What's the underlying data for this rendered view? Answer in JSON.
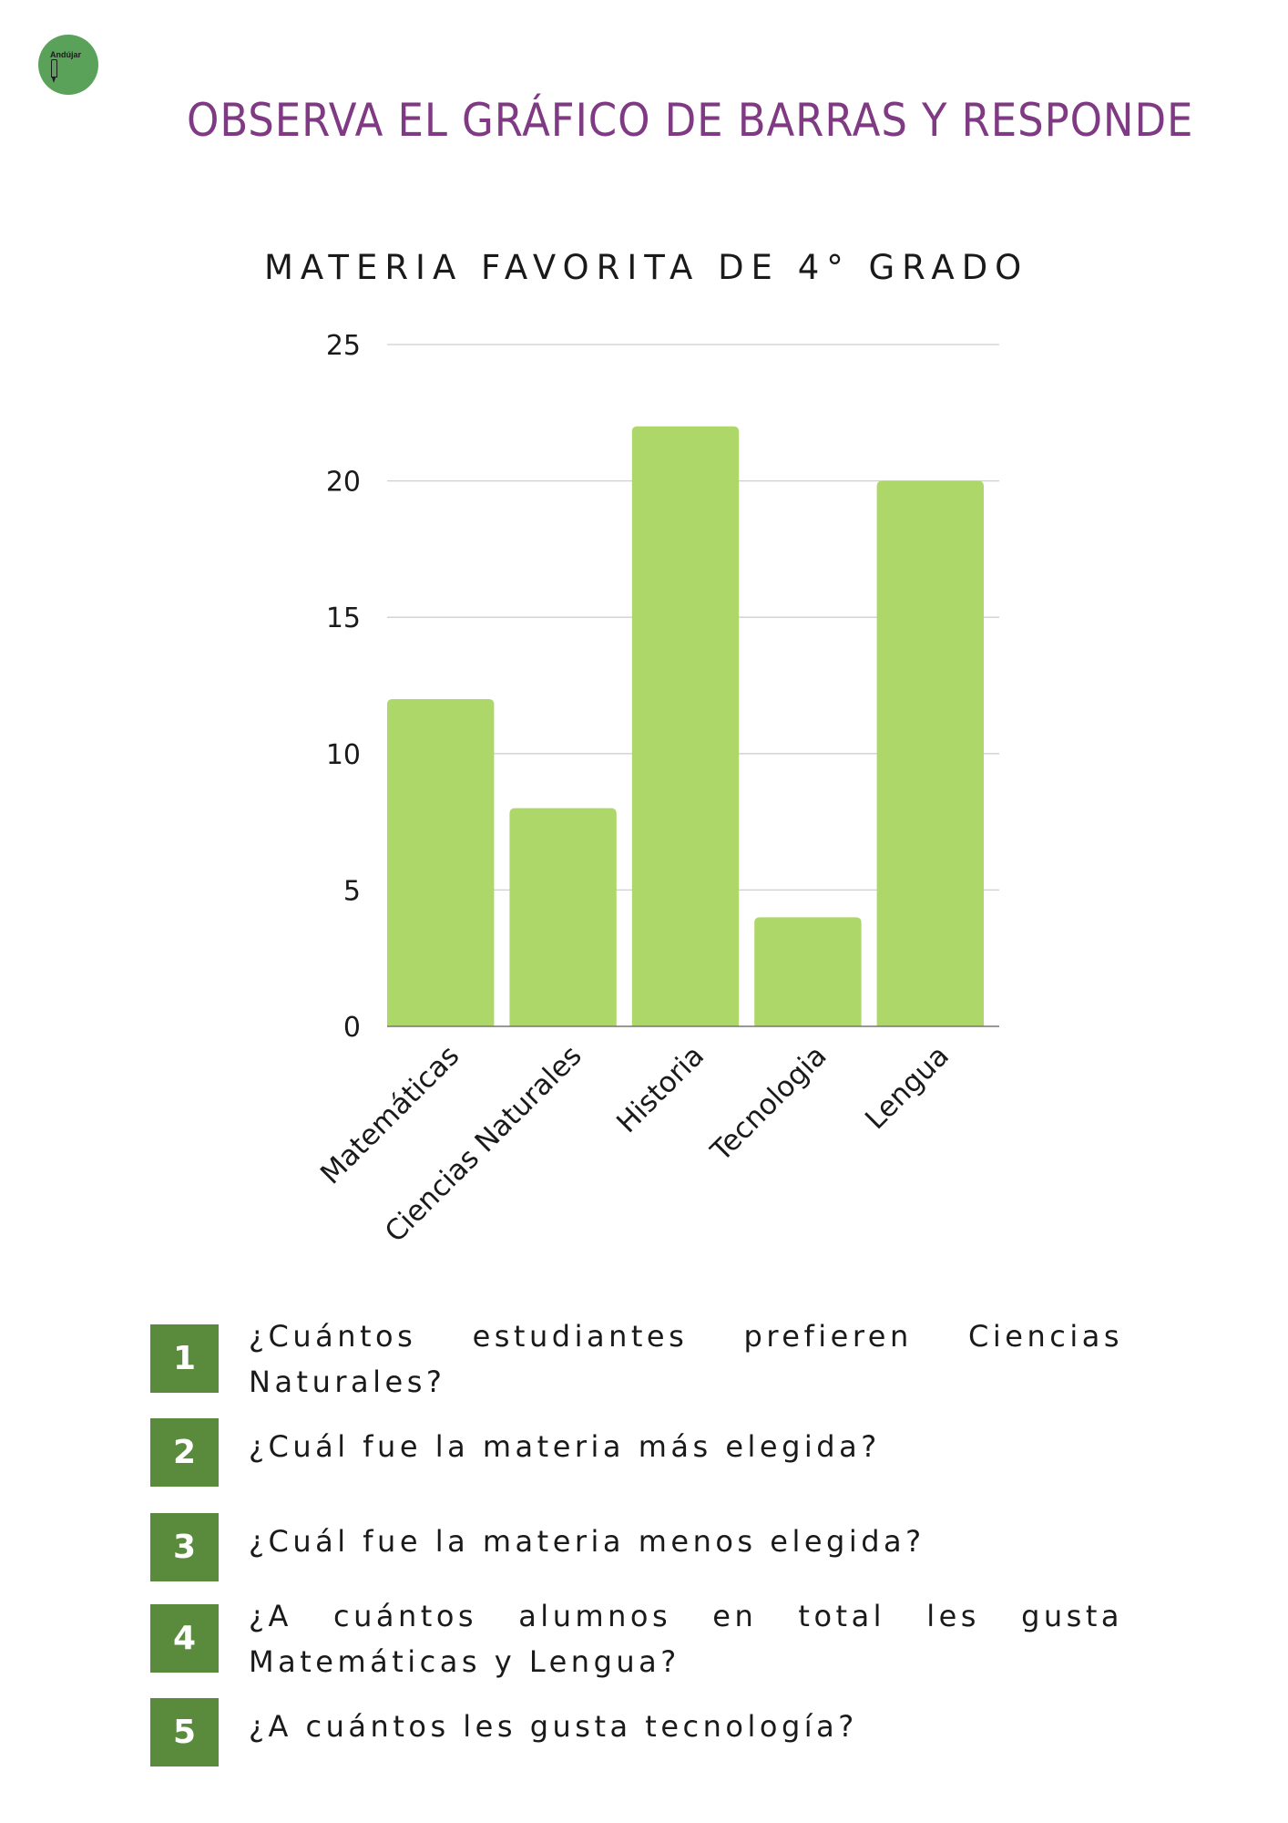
{
  "logo": {
    "text": "Andújar",
    "accent": "#5aa15a"
  },
  "header": {
    "title": "OBSERVA EL GRÁFICO DE BARRAS Y RESPONDE"
  },
  "chart_data": {
    "type": "bar",
    "title": "MATERIA FAVORITA DE 4° GRADO",
    "xlabel": "",
    "ylabel": "",
    "categories": [
      "Matemáticas",
      "Ciencias Naturales",
      "Historia",
      "Tecnologia",
      "Lengua"
    ],
    "values": [
      12,
      8,
      22,
      4,
      20
    ],
    "ylim": [
      0,
      25
    ],
    "yticks": [
      0,
      5,
      10,
      15,
      20,
      25
    ],
    "grid": true,
    "legend": "none",
    "bar_color": "#aed769",
    "grid_color": "#cfcfcf"
  },
  "questions": [
    {
      "number": "1",
      "text": "¿Cuántos estudiantes prefieren Ciencias Naturales?"
    },
    {
      "number": "2",
      "text": "¿Cuál fue la materia más elegida?"
    },
    {
      "number": "3",
      "text": "¿Cuál fue la materia menos elegida?"
    },
    {
      "number": "4",
      "text": "¿A cuántos alumnos en total les gusta Matemáticas y Lengua?"
    },
    {
      "number": "5",
      "text": "¿A cuántos les gusta tecnología?"
    }
  ],
  "colors": {
    "title": "#7f3a83",
    "badge": "#5a8a3c"
  }
}
